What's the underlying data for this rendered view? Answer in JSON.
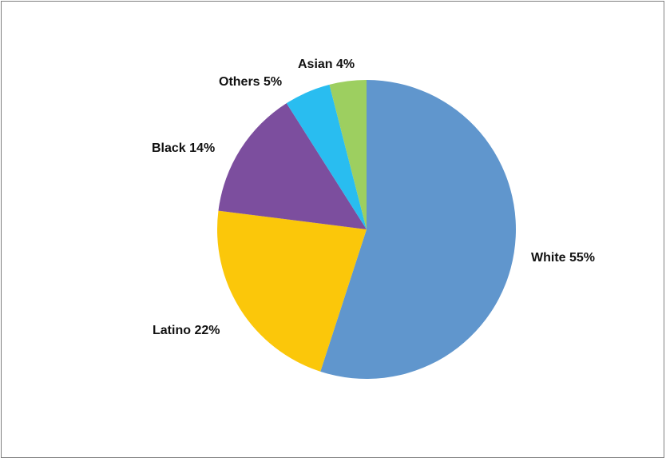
{
  "chart_data": {
    "type": "pie",
    "title": "",
    "slices": [
      {
        "label": "White",
        "value": 55,
        "display": "White 55%",
        "color": "#6096CD"
      },
      {
        "label": "Latino",
        "value": 22,
        "display": "Latino 22%",
        "color": "#FBC70A"
      },
      {
        "label": "Black",
        "value": 14,
        "display": "Black 14%",
        "color": "#7C4E9E"
      },
      {
        "label": "Others",
        "value": 5,
        "display": "Others 5%",
        "color": "#29BDF0"
      },
      {
        "label": "Asian",
        "value": 4,
        "display": "Asian 4%",
        "color": "#9DCF60"
      }
    ],
    "start_angle": "top",
    "direction": "clockwise",
    "legend": "none",
    "labels": "outside-slices"
  }
}
